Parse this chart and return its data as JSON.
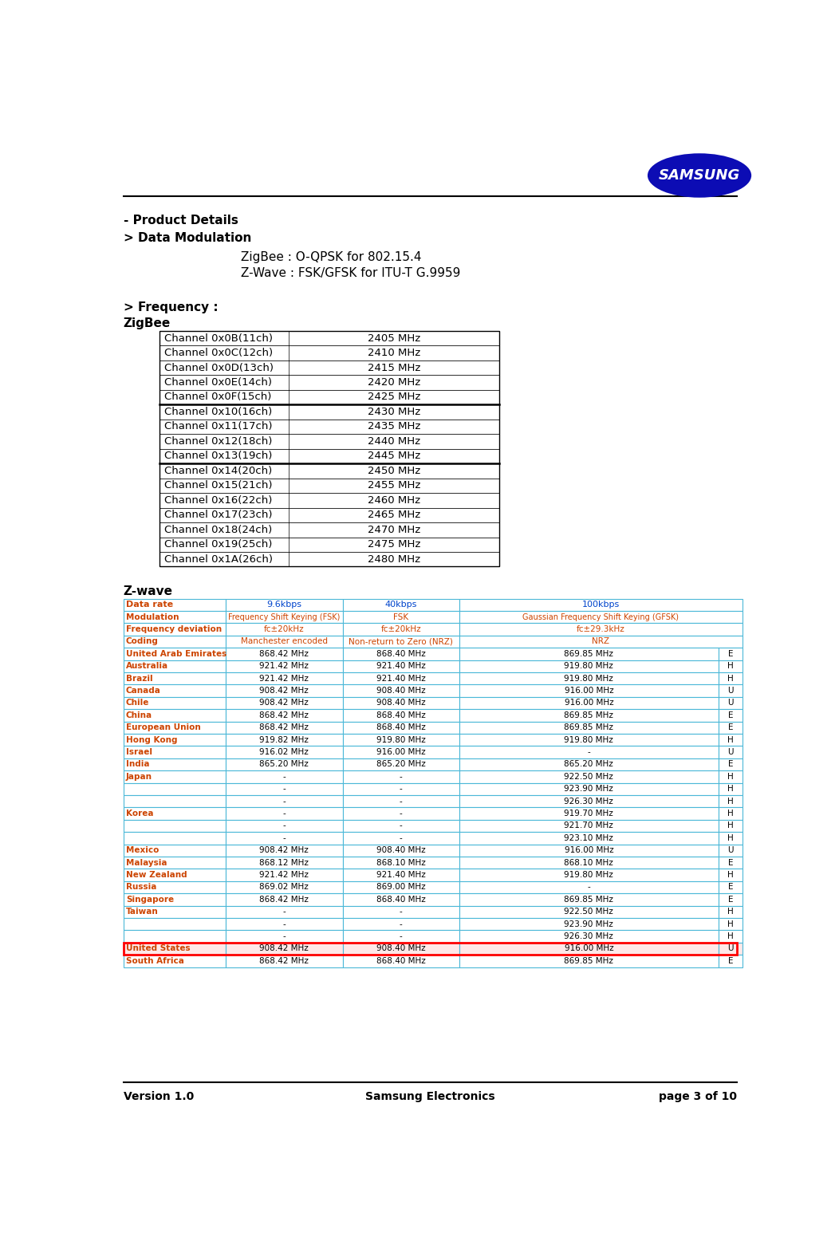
{
  "title_product": "- Product Details",
  "subtitle_modulation": "> Data Modulation",
  "zigbee_modulation": "ZigBee : O-QPSK for 802.15.4",
  "zwave_modulation": "Z-Wave : FSK/GFSK for ITU-T G.9959",
  "frequency_header": "> Frequency :",
  "zigbee_label": "ZigBee",
  "zigbee_channels": [
    [
      "Channel 0x0B(11ch)",
      "2405 MHz"
    ],
    [
      "Channel 0x0C(12ch)",
      "2410 MHz"
    ],
    [
      "Channel 0x0D(13ch)",
      "2415 MHz"
    ],
    [
      "Channel 0x0E(14ch)",
      "2420 MHz"
    ],
    [
      "Channel 0x0F(15ch)",
      "2425 MHz"
    ],
    [
      "Channel 0x10(16ch)",
      "2430 MHz"
    ],
    [
      "Channel 0x11(17ch)",
      "2435 MHz"
    ],
    [
      "Channel 0x12(18ch)",
      "2440 MHz"
    ],
    [
      "Channel 0x13(19ch)",
      "2445 MHz"
    ],
    [
      "Channel 0x14(20ch)",
      "2450 MHz"
    ],
    [
      "Channel 0x15(21ch)",
      "2455 MHz"
    ],
    [
      "Channel 0x16(22ch)",
      "2460 MHz"
    ],
    [
      "Channel 0x17(23ch)",
      "2465 MHz"
    ],
    [
      "Channel 0x18(24ch)",
      "2470 MHz"
    ],
    [
      "Channel 0x19(25ch)",
      "2475 MHz"
    ],
    [
      "Channel 0x1A(26ch)",
      "2480 MHz"
    ]
  ],
  "zwave_label": "Z-wave",
  "zwave_hdr1": [
    "Data rate",
    "9.6kbps",
    "40kbps",
    "100kbps"
  ],
  "zwave_hdr2": [
    "Modulation",
    "Frequency Shift Keying (FSK)",
    "FSK",
    "Gaussian Frequency Shift Keying (GFSK)"
  ],
  "zwave_hdr3": [
    "Frequency deviation",
    "f⁣±20kHz",
    "f⁣±20kHz",
    "f⁣±29.3kHz"
  ],
  "zwave_hdr4": [
    "Coding",
    "Manchester encoded",
    "Non-return to Zero (NRZ)",
    "NRZ"
  ],
  "zwave_rows": [
    [
      "United Arab Emirates",
      "868.42 MHz",
      "868.40 MHz",
      "869.85 MHz",
      "E"
    ],
    [
      "Australia",
      "921.42 MHz",
      "921.40 MHz",
      "919.80 MHz",
      "H"
    ],
    [
      "Brazil",
      "921.42 MHz",
      "921.40 MHz",
      "919.80 MHz",
      "H"
    ],
    [
      "Canada",
      "908.42 MHz",
      "908.40 MHz",
      "916.00 MHz",
      "U"
    ],
    [
      "Chile",
      "908.42 MHz",
      "908.40 MHz",
      "916.00 MHz",
      "U"
    ],
    [
      "China",
      "868.42 MHz",
      "868.40 MHz",
      "869.85 MHz",
      "E"
    ],
    [
      "European Union",
      "868.42 MHz",
      "868.40 MHz",
      "869.85 MHz",
      "E"
    ],
    [
      "Hong Kong",
      "919.82 MHz",
      "919.80 MHz",
      "919.80 MHz",
      "H"
    ],
    [
      "Israel",
      "916.02 MHz",
      "916.00 MHz",
      "-",
      "U"
    ],
    [
      "India",
      "865.20 MHz",
      "865.20 MHz",
      "865.20 MHz",
      "E"
    ],
    [
      "Japan",
      "-",
      "-",
      "922.50 MHz",
      "H"
    ],
    [
      "",
      "-",
      "-",
      "923.90 MHz",
      "H"
    ],
    [
      "",
      "-",
      "-",
      "926.30 MHz",
      "H"
    ],
    [
      "Korea",
      "-",
      "-",
      "919.70 MHz",
      "H"
    ],
    [
      "",
      "-",
      "-",
      "921.70 MHz",
      "H"
    ],
    [
      "",
      "-",
      "-",
      "923.10 MHz",
      "H"
    ],
    [
      "Mexico",
      "908.42 MHz",
      "908.40 MHz",
      "916.00 MHz",
      "U"
    ],
    [
      "Malaysia",
      "868.12 MHz",
      "868.10 MHz",
      "868.10 MHz",
      "E"
    ],
    [
      "New Zealand",
      "921.42 MHz",
      "921.40 MHz",
      "919.80 MHz",
      "H"
    ],
    [
      "Russia",
      "869.02 MHz",
      "869.00 MHz",
      "-",
      "E"
    ],
    [
      "Singapore",
      "868.42 MHz",
      "868.40 MHz",
      "869.85 MHz",
      "E"
    ],
    [
      "Taiwan",
      "-",
      "-",
      "922.50 MHz",
      "H"
    ],
    [
      "",
      "-",
      "-",
      "923.90 MHz",
      "H"
    ],
    [
      "",
      "-",
      "-",
      "926.30 MHz",
      "H"
    ],
    [
      "United States",
      "908.42 MHz",
      "908.40 MHz",
      "916.00 MHz",
      "U"
    ],
    [
      "South Africa",
      "868.42 MHz",
      "868.40 MHz",
      "869.85 MHz",
      "E"
    ]
  ],
  "footer_version": "Version 1.0",
  "footer_company": "Samsung Electronics",
  "footer_page": "page 3 of 10",
  "background_color": "#ffffff",
  "zwave_border_color": "#4BB8D8",
  "orange_text": "#CC4400",
  "blue_text": "#0044CC",
  "us_highlight": "#FFE8E8"
}
